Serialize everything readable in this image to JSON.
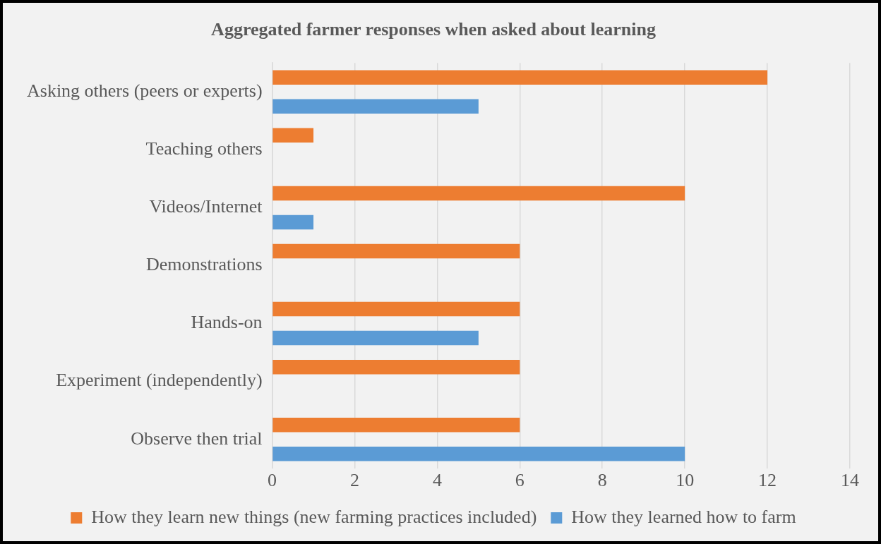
{
  "chart_data": {
    "type": "bar",
    "orientation": "horizontal",
    "title": "Aggregated farmer responses when asked about learning",
    "categories": [
      "Asking others (peers or experts)",
      "Teaching others",
      "Videos/Internet",
      "Demonstrations",
      "Hands-on",
      "Experiment (independently)",
      "Observe then trial"
    ],
    "series": [
      {
        "name": "How they learn new things (new farming practices included)",
        "color": "#ed7d31",
        "values": [
          12,
          1,
          10,
          6,
          6,
          6,
          6
        ]
      },
      {
        "name": "How they learned how to farm",
        "color": "#5b9bd5",
        "values": [
          5,
          0,
          1,
          0,
          5,
          0,
          10
        ]
      }
    ],
    "xlim": [
      0,
      14
    ],
    "xticks": [
      0,
      2,
      4,
      6,
      8,
      10,
      12,
      14
    ],
    "grid": "x",
    "legend": "bottom"
  }
}
